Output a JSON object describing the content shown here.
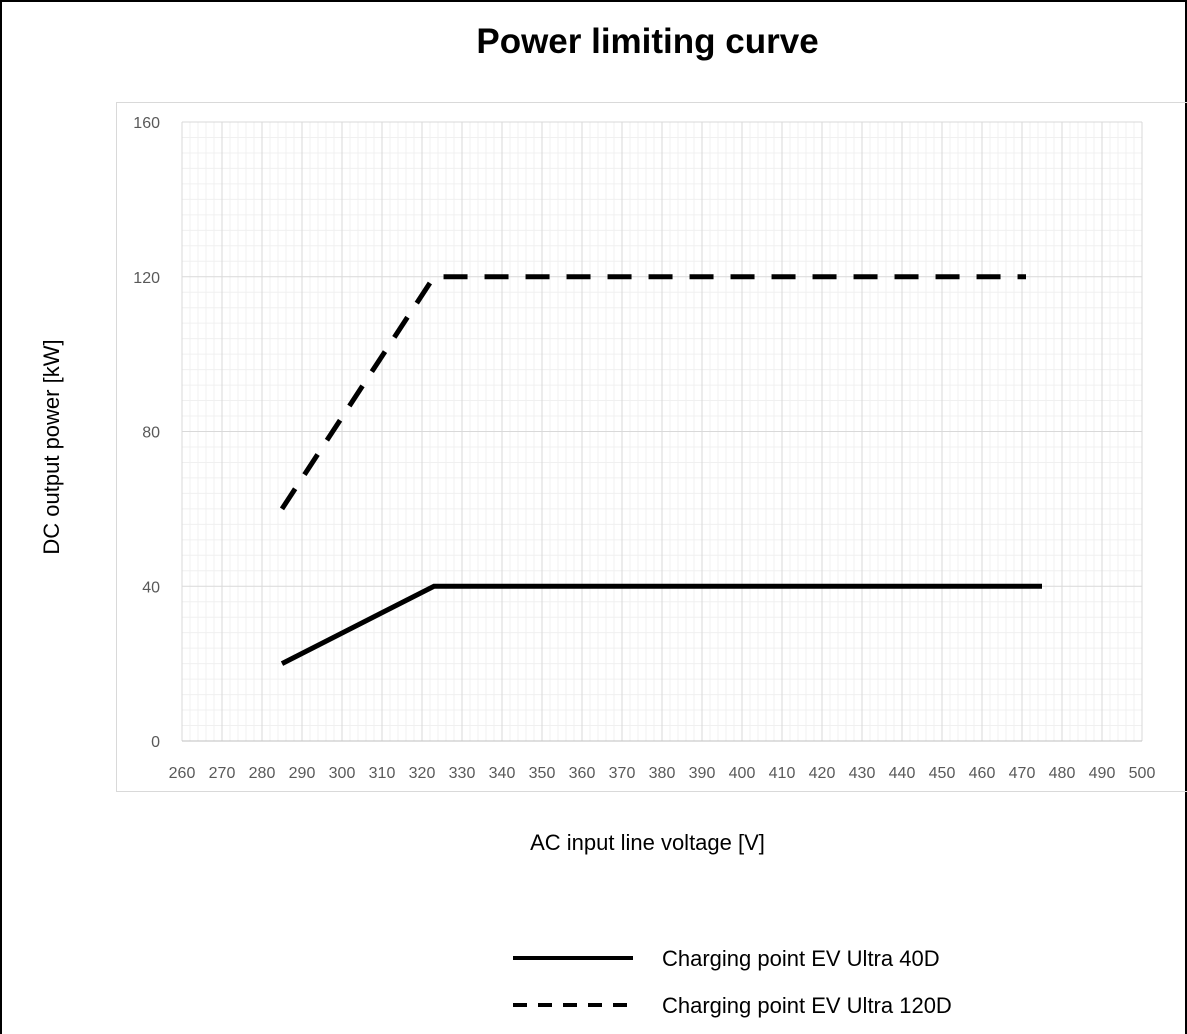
{
  "chart_data": {
    "type": "line",
    "title": "Power limiting curve",
    "xlabel": "AC input line voltage [V]",
    "ylabel": "DC output power [kW]",
    "xlim": [
      260,
      500
    ],
    "ylim": [
      0,
      160
    ],
    "x_ticks": [
      260,
      270,
      280,
      290,
      300,
      310,
      320,
      330,
      340,
      350,
      360,
      370,
      380,
      390,
      400,
      410,
      420,
      430,
      440,
      450,
      460,
      470,
      480,
      490,
      500
    ],
    "y_ticks": [
      0,
      40,
      80,
      120,
      160
    ],
    "grid": true,
    "legend_position": "bottom",
    "series": [
      {
        "name": "Charging point EV Ultra 40D",
        "style": "solid",
        "color": "#000000",
        "x": [
          285,
          323,
          475
        ],
        "y": [
          20,
          40,
          40
        ]
      },
      {
        "name": "Charging point EV Ultra 120D",
        "style": "dashed",
        "color": "#000000",
        "x": [
          285,
          323,
          471
        ],
        "y": [
          60,
          120,
          120
        ]
      }
    ]
  }
}
